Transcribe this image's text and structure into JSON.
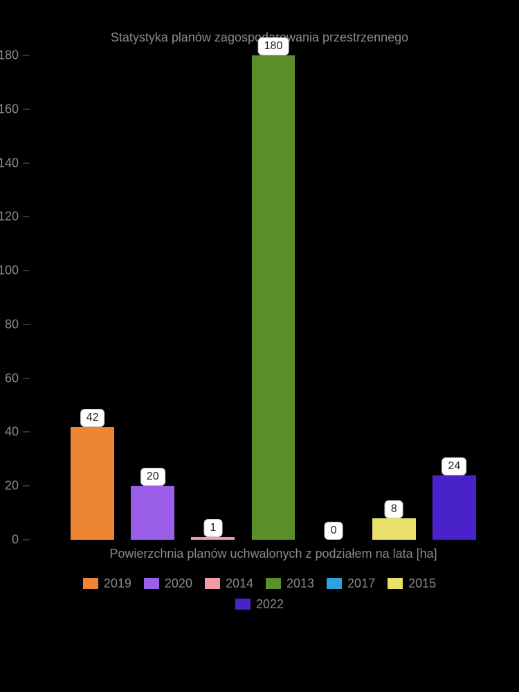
{
  "chart": {
    "type": "bar",
    "title": "Statystyka planów zagospodarowania przestrzennego",
    "title_fontsize": 18,
    "title_color": "#8a8a8a",
    "x_label": "Powierzchnia planów uchwalonych z podziałem na lata [ha]",
    "label_fontsize": 18,
    "label_color": "#8a8a8a",
    "background_color": "#000000",
    "ylim": [
      0,
      180
    ],
    "ytick_step": 20,
    "yticks": [
      0,
      20,
      40,
      60,
      80,
      100,
      120,
      140,
      160,
      180
    ],
    "tick_color": "#8a8a8a",
    "tick_fontsize": 18,
    "bar_label_bg": "#ffffff",
    "bar_label_color": "#222222",
    "bar_label_fontsize": 16,
    "bars": [
      {
        "year": "2019",
        "value": 42,
        "color": "#ee8534"
      },
      {
        "year": "2020",
        "value": 20,
        "color": "#9a5ee8"
      },
      {
        "year": "2014",
        "value": 1,
        "color": "#f09ca8"
      },
      {
        "year": "2013",
        "value": 180,
        "color": "#5a8f29"
      },
      {
        "year": "2017",
        "value": 0,
        "color": "#2ca3dd"
      },
      {
        "year": "2015",
        "value": 8,
        "color": "#e8e06a"
      },
      {
        "year": "2022",
        "value": 24,
        "color": "#4a22c9"
      }
    ],
    "legend_rows": [
      [
        "2019",
        "2020",
        "2014",
        "2013",
        "2017",
        "2015"
      ],
      [
        "2022"
      ]
    ]
  }
}
